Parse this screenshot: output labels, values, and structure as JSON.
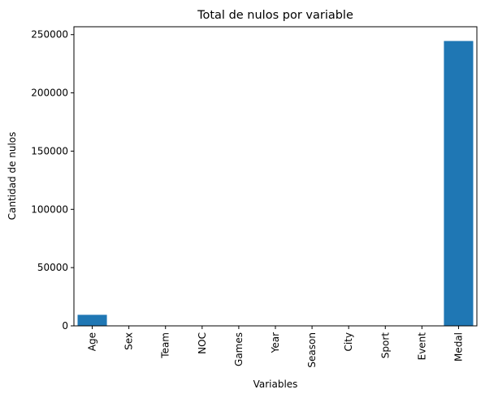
{
  "chart_data": {
    "type": "bar",
    "title": "Total de nulos por variable",
    "xlabel": "Variables",
    "ylabel": "Cantidad de nulos",
    "categories": [
      "Age",
      "Sex",
      "Team",
      "NOC",
      "Games",
      "Year",
      "Season",
      "City",
      "Sport",
      "Event",
      "Medal"
    ],
    "values": [
      9474,
      0,
      0,
      0,
      0,
      0,
      0,
      0,
      0,
      0,
      244538
    ],
    "ylim": [
      0,
      256764
    ],
    "yticks": [
      0,
      50000,
      100000,
      150000,
      200000,
      250000
    ],
    "bar_color": "#1f77b4",
    "grid": false,
    "legend": "none"
  }
}
